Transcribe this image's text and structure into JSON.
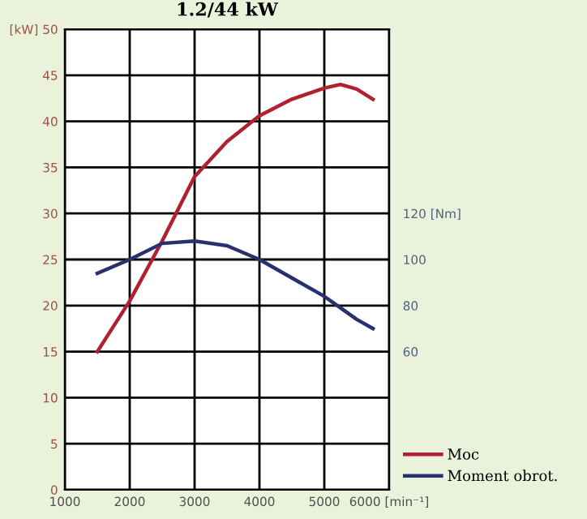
{
  "chart_data": {
    "type": "line",
    "title": "1.2/44 kW",
    "x": [
      1500,
      2000,
      2500,
      3000,
      3500,
      4000,
      4500,
      5000,
      5250,
      5500,
      5750
    ],
    "series": [
      {
        "name": "Moc",
        "color": "#b02030",
        "values": [
          15,
          20.5,
          27,
          34,
          37.8,
          40.6,
          42.4,
          43.6,
          44,
          43.5,
          42.4
        ]
      },
      {
        "name": "Moment obrot.",
        "color": "#283070",
        "axis": "y2",
        "values": [
          94,
          100,
          107,
          108,
          106,
          100,
          92,
          84,
          79,
          74,
          70
        ]
      }
    ],
    "xlim": [
      1000,
      6000
    ],
    "xticks": [
      1000,
      2000,
      3000,
      4000,
      5000,
      {
        "value": 6000,
        "label": "6000 [min⁻¹]"
      }
    ],
    "ylim": [
      0,
      50
    ],
    "yticks": [
      0,
      5,
      10,
      15,
      20,
      25,
      30,
      35,
      40,
      45,
      {
        "value": 50,
        "label": "[kW] 50"
      }
    ],
    "y2lim": [
      0,
      200
    ],
    "y2ticks": [
      60,
      80,
      100,
      {
        "value": 120,
        "label": "120 [Nm]"
      }
    ],
    "grid": true,
    "legend": "bottom right",
    "marker": "none",
    "line_style": "solid"
  }
}
